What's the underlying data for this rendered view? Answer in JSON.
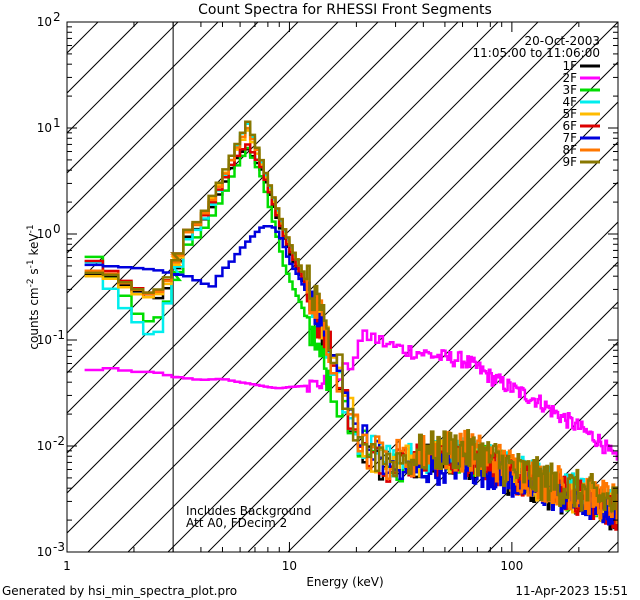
{
  "chart_data": {
    "type": "line",
    "title": "Count Spectra for RHESSI Front Segments",
    "xlabel": "Energy (keV)",
    "ylabel_parts": {
      "a": "counts cm",
      "b": "-2",
      "c": " s",
      "d": "-1",
      "e": " keV",
      "f": "-1"
    },
    "xscale": "log",
    "yscale": "log",
    "xlim": [
      1,
      300
    ],
    "ylim": [
      0.001,
      100
    ],
    "x_tick_labels": [
      {
        "value": 1,
        "label": "1"
      },
      {
        "value": 10,
        "label": "10"
      },
      {
        "value": 100,
        "label": "100"
      }
    ],
    "y_tick_labels": [
      {
        "exp": "-3",
        "value": 0.001
      },
      {
        "exp": "-2",
        "value": 0.01
      },
      {
        "exp": "-1",
        "value": 0.1
      },
      {
        "exp": "0",
        "value": 1
      },
      {
        "exp": "1",
        "value": 10
      },
      {
        "exp": "2",
        "value": 100
      }
    ],
    "y_tick_base": "10",
    "hatched_region": [
      1,
      3
    ],
    "date": "20-Oct-2003",
    "time_range": "11:05:00 to 11:06:00",
    "annotation_line1": "Includes Background",
    "annotation_line2": "Att A0, FDecim 2",
    "footer_left": "Generated by hsi_min_spectra_plot.pro",
    "footer_right": "11-Apr-2023 15:51",
    "legend_position": "top-right",
    "shared_points": [
      [
        6.5,
        7.0
      ],
      [
        7.5,
        4.5
      ],
      [
        8.5,
        2.0
      ],
      [
        9.5,
        1.0
      ],
      [
        10.5,
        0.6
      ],
      [
        11.5,
        0.4
      ],
      [
        12.5,
        0.25
      ],
      [
        13.5,
        0.16
      ],
      [
        14.5,
        0.11
      ],
      [
        15.5,
        0.075
      ],
      [
        16.5,
        0.05
      ],
      [
        17.5,
        0.033
      ],
      [
        18.5,
        0.022
      ],
      [
        19.5,
        0.015
      ],
      [
        21,
        0.011
      ],
      [
        23,
        0.0085
      ],
      [
        25,
        0.0075
      ],
      [
        28,
        0.007
      ],
      [
        32,
        0.0068
      ],
      [
        38,
        0.0075
      ],
      [
        45,
        0.008
      ],
      [
        55,
        0.0085
      ],
      [
        65,
        0.008
      ],
      [
        80,
        0.007
      ],
      [
        100,
        0.0055
      ],
      [
        130,
        0.0045
      ],
      [
        170,
        0.0038
      ],
      [
        220,
        0.0032
      ],
      [
        280,
        0.0027
      ],
      [
        300,
        0.0025
      ]
    ],
    "series": [
      {
        "name": "1F",
        "color": "#000000",
        "points": [
          [
            1.5,
            0.42
          ],
          [
            1.75,
            0.34
          ],
          [
            2.0,
            0.3
          ],
          [
            2.25,
            0.26
          ],
          [
            2.5,
            0.24
          ],
          [
            2.75,
            0.27
          ],
          [
            3.0,
            0.42
          ],
          [
            3.5,
            0.95
          ],
          [
            4.0,
            1.2
          ],
          [
            4.5,
            1.8
          ],
          [
            5.0,
            2.7
          ],
          [
            5.5,
            4.2
          ],
          [
            6.0,
            5.8
          ]
        ],
        "scale": 0.9,
        "noise": 0.35
      },
      {
        "name": "2F",
        "color": "#ff00ff",
        "points": [
          [
            1.2,
            0.05
          ],
          [
            1.5,
            0.055
          ],
          [
            2.0,
            0.05
          ],
          [
            2.5,
            0.05
          ],
          [
            3.0,
            0.045
          ],
          [
            4.0,
            0.042
          ],
          [
            5.0,
            0.043
          ],
          [
            6.0,
            0.04
          ],
          [
            7.0,
            0.038
          ],
          [
            8.0,
            0.036
          ],
          [
            9.0,
            0.035
          ],
          [
            10.0,
            0.036
          ],
          [
            12.0,
            0.037
          ],
          [
            15.0,
            0.04
          ],
          [
            17.0,
            0.045
          ],
          [
            19.0,
            0.06
          ],
          [
            21.0,
            0.1
          ],
          [
            23.0,
            0.11
          ],
          [
            25.0,
            0.1
          ],
          [
            30.0,
            0.085
          ],
          [
            40.0,
            0.075
          ],
          [
            50.0,
            0.068
          ],
          [
            60.0,
            0.065
          ],
          [
            70.0,
            0.055
          ],
          [
            80.0,
            0.045
          ],
          [
            100.0,
            0.035
          ],
          [
            130.0,
            0.027
          ],
          [
            160.0,
            0.02
          ],
          [
            200.0,
            0.015
          ],
          [
            250.0,
            0.011
          ],
          [
            300.0,
            0.007
          ]
        ],
        "noise": 0.15
      },
      {
        "name": "3F",
        "color": "#00dd00",
        "points": [
          [
            1.2,
            0.8
          ],
          [
            1.5,
            0.42
          ],
          [
            1.75,
            0.3
          ],
          [
            2.0,
            0.19
          ],
          [
            2.25,
            0.15
          ],
          [
            2.5,
            0.15
          ],
          [
            2.75,
            0.2
          ],
          [
            3.0,
            0.32
          ],
          [
            3.5,
            0.8
          ],
          [
            4.0,
            1.0
          ],
          [
            4.5,
            1.5
          ],
          [
            5.0,
            2.2
          ],
          [
            5.5,
            3.5
          ],
          [
            6.0,
            5.0
          ],
          [
            6.5,
            6.5
          ],
          [
            7.5,
            3.5
          ],
          [
            8.5,
            1.3
          ],
          [
            9.5,
            0.5
          ],
          [
            10.5,
            0.3
          ],
          [
            11.5,
            0.2
          ],
          [
            12.5,
            0.12
          ],
          [
            13.5,
            0.08
          ],
          [
            14.5,
            0.055
          ],
          [
            15.5,
            0.04
          ],
          [
            16.5,
            0.028
          ],
          [
            17.5,
            0.02
          ],
          [
            18.5,
            0.014
          ]
        ],
        "scale": 1.0,
        "noise": 0.35
      },
      {
        "name": "4F",
        "color": "#00eeee",
        "points": [
          [
            1.2,
            0.75
          ],
          [
            1.5,
            0.35
          ],
          [
            1.75,
            0.22
          ],
          [
            2.0,
            0.16
          ],
          [
            2.25,
            0.12
          ],
          [
            2.5,
            0.1
          ],
          [
            2.75,
            0.18
          ],
          [
            3.0,
            0.36
          ],
          [
            3.5,
            0.9
          ],
          [
            4.0,
            1.2
          ],
          [
            4.5,
            1.9
          ],
          [
            5.0,
            3.0
          ],
          [
            5.5,
            5.0
          ],
          [
            6.0,
            8.0
          ],
          [
            6.5,
            11.0
          ]
        ],
        "scale": 1.05,
        "noise": 0.35
      },
      {
        "name": "5F",
        "color": "#ffbb00",
        "points": [
          [
            1.5,
            0.4
          ],
          [
            1.75,
            0.33
          ],
          [
            2.0,
            0.28
          ],
          [
            2.25,
            0.25
          ],
          [
            2.5,
            0.26
          ],
          [
            2.75,
            0.3
          ],
          [
            3.0,
            0.45
          ],
          [
            3.5,
            1.05
          ],
          [
            4.0,
            1.3
          ],
          [
            4.5,
            2.2
          ],
          [
            5.0,
            3.3
          ],
          [
            5.5,
            5.0
          ],
          [
            6.0,
            7.0
          ],
          [
            6.5,
            9.5
          ]
        ],
        "scale": 1.0,
        "noise": 0.35
      },
      {
        "name": "6F",
        "color": "#dd0000",
        "points": [
          [
            1.2,
            0.62
          ],
          [
            1.5,
            0.48
          ],
          [
            1.75,
            0.38
          ],
          [
            2.0,
            0.32
          ],
          [
            2.25,
            0.28
          ],
          [
            2.5,
            0.28
          ],
          [
            2.75,
            0.32
          ],
          [
            3.0,
            0.5
          ],
          [
            3.5,
            1.1
          ],
          [
            4.0,
            1.3
          ],
          [
            4.5,
            2.0
          ],
          [
            5.0,
            3.0
          ],
          [
            5.5,
            4.5
          ],
          [
            6.0,
            6.0
          ],
          [
            6.5,
            7.0
          ]
        ],
        "scale": 0.95,
        "noise": 0.35
      },
      {
        "name": "7F",
        "color": "#0000dd",
        "points": [
          [
            1.2,
            0.52
          ],
          [
            1.5,
            0.5
          ],
          [
            2.0,
            0.48
          ],
          [
            2.5,
            0.46
          ],
          [
            3.0,
            0.42
          ],
          [
            3.5,
            0.4
          ],
          [
            4.0,
            0.35
          ],
          [
            4.5,
            0.32
          ],
          [
            5.0,
            0.45
          ],
          [
            5.5,
            0.55
          ],
          [
            6.0,
            0.7
          ],
          [
            6.5,
            0.85
          ],
          [
            7.0,
            1.0
          ],
          [
            7.5,
            1.15
          ],
          [
            8.0,
            1.2
          ],
          [
            8.5,
            1.15
          ],
          [
            9.0,
            1.0
          ],
          [
            9.5,
            0.75
          ],
          [
            10.0,
            0.55
          ],
          [
            11.0,
            0.4
          ],
          [
            12.0,
            0.28
          ],
          [
            13.0,
            0.18
          ],
          [
            14.0,
            0.13
          ],
          [
            15.0,
            0.09
          ],
          [
            16.0,
            0.06
          ],
          [
            17.0,
            0.04
          ],
          [
            18.0,
            0.028
          ],
          [
            19.0,
            0.02
          ],
          [
            21.0,
            0.013
          ],
          [
            23.0,
            0.01
          ],
          [
            25.0,
            0.008
          ],
          [
            28.0,
            0.006
          ],
          [
            32.0,
            0.0055
          ],
          [
            38.0,
            0.006
          ],
          [
            45.0,
            0.006
          ],
          [
            55.0,
            0.0065
          ],
          [
            65.0,
            0.006
          ],
          [
            80.0,
            0.0055
          ],
          [
            100.0,
            0.0045
          ],
          [
            130.0,
            0.0038
          ],
          [
            170.0,
            0.0032
          ],
          [
            220.0,
            0.0028
          ],
          [
            280.0,
            0.0024
          ],
          [
            300.0,
            0.0022
          ]
        ],
        "noise": 0.3
      },
      {
        "name": "8F",
        "color": "#ff7700",
        "points": [
          [
            1.5,
            0.45
          ],
          [
            1.75,
            0.36
          ],
          [
            2.0,
            0.31
          ],
          [
            2.25,
            0.27
          ],
          [
            2.5,
            0.27
          ],
          [
            2.75,
            0.32
          ],
          [
            3.0,
            0.48
          ],
          [
            3.5,
            1.05
          ],
          [
            4.0,
            1.35
          ],
          [
            4.5,
            2.1
          ],
          [
            5.0,
            3.2
          ],
          [
            5.5,
            5.0
          ],
          [
            6.0,
            7.5
          ],
          [
            6.5,
            10.0
          ]
        ],
        "scale": 1.1,
        "noise": 0.4
      },
      {
        "name": "9F",
        "color": "#887700",
        "points": [
          [
            1.5,
            0.43
          ],
          [
            1.75,
            0.37
          ],
          [
            2.0,
            0.31
          ],
          [
            2.25,
            0.28
          ],
          [
            2.5,
            0.28
          ],
          [
            2.75,
            0.35
          ],
          [
            3.0,
            0.5
          ],
          [
            3.5,
            1.1
          ],
          [
            4.0,
            1.4
          ],
          [
            4.5,
            2.3
          ],
          [
            5.0,
            3.5
          ],
          [
            5.5,
            5.5
          ],
          [
            6.0,
            8.0
          ],
          [
            6.5,
            11.5
          ]
        ],
        "scale": 1.1,
        "noise": 0.4
      }
    ]
  }
}
